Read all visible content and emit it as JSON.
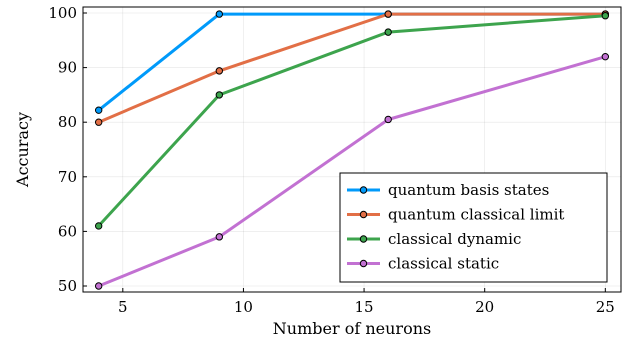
{
  "chart_data": {
    "type": "line",
    "title": "",
    "xlabel": "Number of neurons",
    "ylabel": "Accuracy",
    "xlim": [
      3.35,
      25.65
    ],
    "ylim": [
      48.9,
      101.1
    ],
    "xticks": [
      5,
      10,
      15,
      20,
      25
    ],
    "yticks": [
      50,
      60,
      70,
      80,
      90,
      100
    ],
    "grid": true,
    "legend_position": "bottom-right",
    "x": [
      4,
      9,
      16,
      25
    ],
    "series": [
      {
        "name": "quantum basis states",
        "color": "#009AFA",
        "values": [
          82.2,
          99.8,
          99.8,
          99.8
        ]
      },
      {
        "name": "quantum classical limit",
        "color": "#E26F46",
        "values": [
          80.0,
          89.4,
          99.8,
          99.8
        ]
      },
      {
        "name": "classical dynamic",
        "color": "#3DA44D",
        "values": [
          61.0,
          85.0,
          96.5,
          99.5
        ]
      },
      {
        "name": "classical static",
        "color": "#C271D2",
        "values": [
          50.0,
          59.0,
          80.5,
          92.0
        ]
      }
    ]
  }
}
